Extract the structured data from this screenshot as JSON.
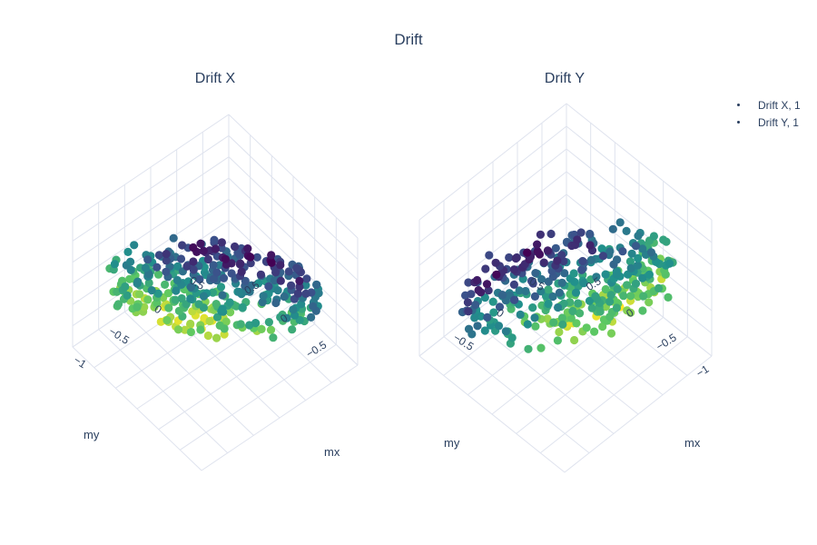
{
  "title": "Drift",
  "legend": {
    "items": [
      {
        "label": "Drift X, 1"
      },
      {
        "label": "Drift Y, 1"
      }
    ]
  },
  "colors": {
    "axis_text": "#2a3f5f",
    "grid": "#dfe3ee",
    "colorscale": "viridis"
  },
  "chart_data": [
    {
      "type": "scatter3d",
      "title": "Drift X",
      "xlabel": "mx",
      "ylabel": "my",
      "zlabel": "",
      "x_ticks": [
        "−1",
        "−0.5",
        "0",
        "0.5"
      ],
      "y_ticks": [
        "−0.5",
        "0",
        "0.5"
      ],
      "z_ticks": [],
      "trend": {
        "z_from_mx": -0.55,
        "z_from_my": -0.35
      },
      "grid": true
    },
    {
      "type": "scatter3d",
      "title": "Drift Y",
      "xlabel": "mx",
      "ylabel": "my",
      "zlabel": "",
      "x_ticks": [
        "−0.5",
        "0",
        "0.5"
      ],
      "y_ticks": [
        "−1",
        "−0.5",
        "0",
        "0.5"
      ],
      "z_ticks": [
        "0"
      ],
      "trend": {
        "z_from_mx": -0.15,
        "z_from_my": -0.55
      },
      "grid": true
    }
  ]
}
